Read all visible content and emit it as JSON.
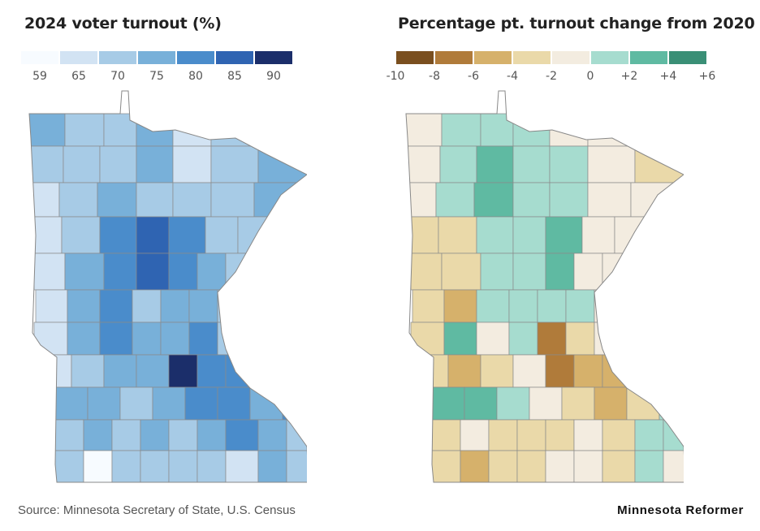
{
  "left_panel": {
    "title": "2024 voter turnout (%)",
    "legend_colors": [
      "#f7fbff",
      "#d2e3f3",
      "#a7cbe6",
      "#78b0d9",
      "#4a8ccb",
      "#2f64b2",
      "#1b2e6a"
    ],
    "tick_labels": [
      "59",
      "65",
      "70",
      "75",
      "80",
      "85",
      "90"
    ]
  },
  "right_panel": {
    "title": "Percentage pt. turnout change from 2020",
    "legend_colors": [
      "#7a4f1f",
      "#b07b3a",
      "#d6b16b",
      "#ead9a9",
      "#f3ece0",
      "#a6dccf",
      "#5fbaa2",
      "#3a8f76"
    ],
    "tick_labels": [
      "-10",
      "-8",
      "-6",
      "-4",
      "-2",
      "0",
      "+2",
      "+4",
      "+6"
    ]
  },
  "footer": {
    "source": "Source: Minnesota Secretary of State, U.S. Census",
    "brand": "Minnesota Reformer"
  }
}
